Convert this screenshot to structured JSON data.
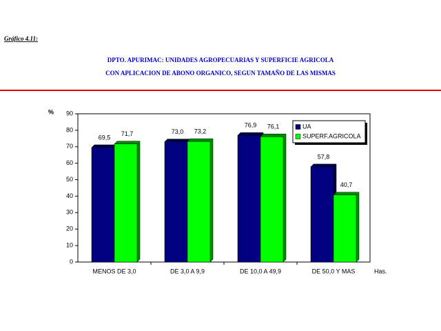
{
  "figure_label": "Gráfico 4.11:",
  "chart_data": {
    "type": "bar",
    "title": [
      "DPTO. APURIMAC: UNIDADES AGROPECUARIAS Y SUPERFICIE AGRICOLA",
      "CON APLICACION DE ABONO ORGANICO, SEGUN TAMAÑO DE LAS MISMAS"
    ],
    "ylabel": "%",
    "xlabel": "Has.",
    "categories": [
      "MENOS DE 3,0",
      "DE 3,0  A 9,9",
      "DE 10,0 A 49,9",
      "DE 50,0 Y MAS"
    ],
    "series": [
      {
        "name": "UA",
        "color": "#000080",
        "values": [
          69.5,
          73.0,
          76.9,
          57.8
        ],
        "value_labels": [
          "69,5",
          "73,0",
          "76,9",
          "57,8"
        ]
      },
      {
        "name": "SUPERF.AGRICOLA",
        "color": "#00ff00",
        "values": [
          71.7,
          73.2,
          76.1,
          40.7
        ],
        "value_labels": [
          "71,7",
          "73,2",
          "76,1",
          "40,7"
        ]
      }
    ],
    "ylim": [
      0,
      90
    ],
    "yticks": [
      0,
      10,
      20,
      30,
      40,
      50,
      60,
      70,
      80,
      90
    ],
    "grid": false,
    "legend": "top-right"
  }
}
